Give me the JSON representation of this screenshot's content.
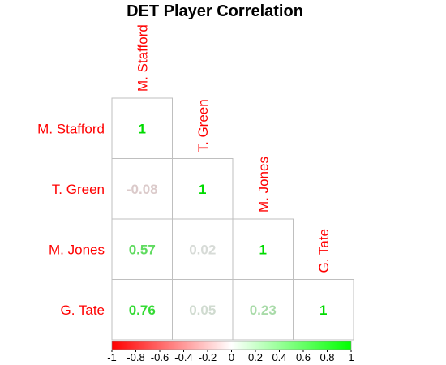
{
  "chart_data": {
    "type": "heatmap",
    "title": "DET Player Correlation",
    "labels": [
      "M. Stafford",
      "T. Green",
      "M. Jones",
      "G. Tate"
    ],
    "matrix": [
      [
        1,
        null,
        null,
        null
      ],
      [
        -0.08,
        1,
        null,
        null
      ],
      [
        0.57,
        0.02,
        1,
        null
      ],
      [
        0.76,
        0.05,
        0.23,
        1
      ]
    ],
    "display": [
      [
        "1",
        "",
        "",
        ""
      ],
      [
        "-0.08",
        "1",
        "",
        ""
      ],
      [
        "0.57",
        "0.02",
        "1",
        ""
      ],
      [
        "0.76",
        "0.05",
        "0.23",
        "1"
      ]
    ],
    "layout_shape": "lower-triangle",
    "colorbar": {
      "range": [
        -1,
        1
      ],
      "ticks": [
        "-1",
        "-0.8",
        "-0.6",
        "-0.4",
        "-0.2",
        "0",
        "0.2",
        "0.4",
        "0.6",
        "0.8",
        "1"
      ],
      "low_color": "#ff0000",
      "mid_color": "#ffffff",
      "high_color": "#00ff00"
    },
    "label_color": "#ff0000",
    "grid": true
  }
}
